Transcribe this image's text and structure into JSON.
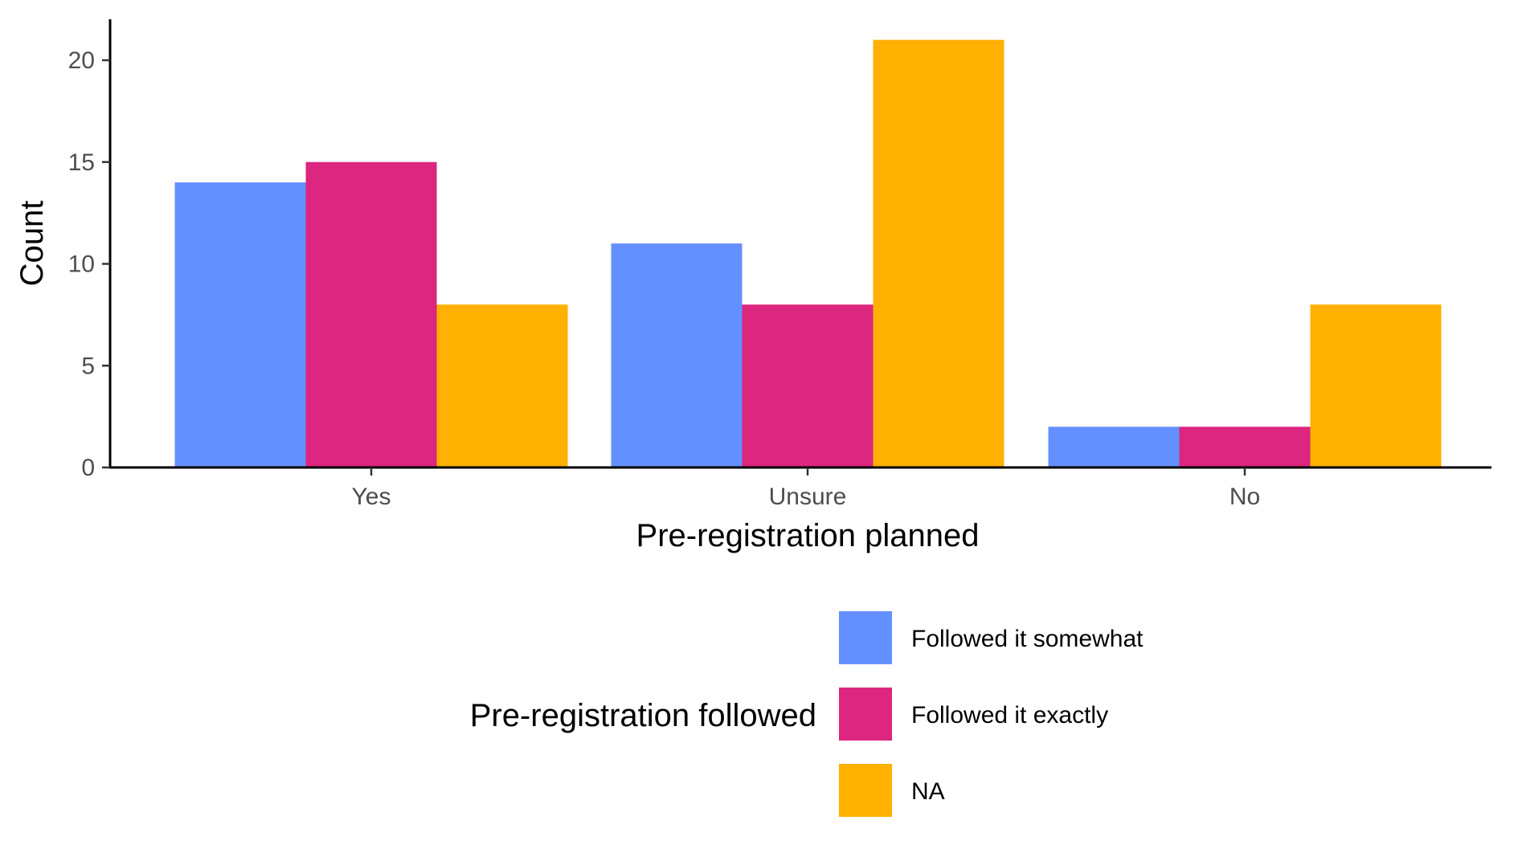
{
  "chart_data": {
    "type": "bar",
    "title": "",
    "xlabel": "Pre-registration planned",
    "ylabel": "Count",
    "categories": [
      "Yes",
      "Unsure",
      "No"
    ],
    "series": [
      {
        "name": "Followed it somewhat",
        "color": "#648FFF",
        "values": [
          14,
          11,
          2
        ]
      },
      {
        "name": "Followed it exactly",
        "color": "#DC267F",
        "values": [
          15,
          8,
          2
        ]
      },
      {
        "name": "NA",
        "color": "#FFB000",
        "values": [
          8,
          21,
          8
        ]
      }
    ],
    "ylim": [
      0,
      22
    ],
    "yticks": [
      0,
      5,
      10,
      15,
      20
    ],
    "grid": false,
    "legend": {
      "title": "Pre-registration followed",
      "placement": "bottom"
    }
  }
}
